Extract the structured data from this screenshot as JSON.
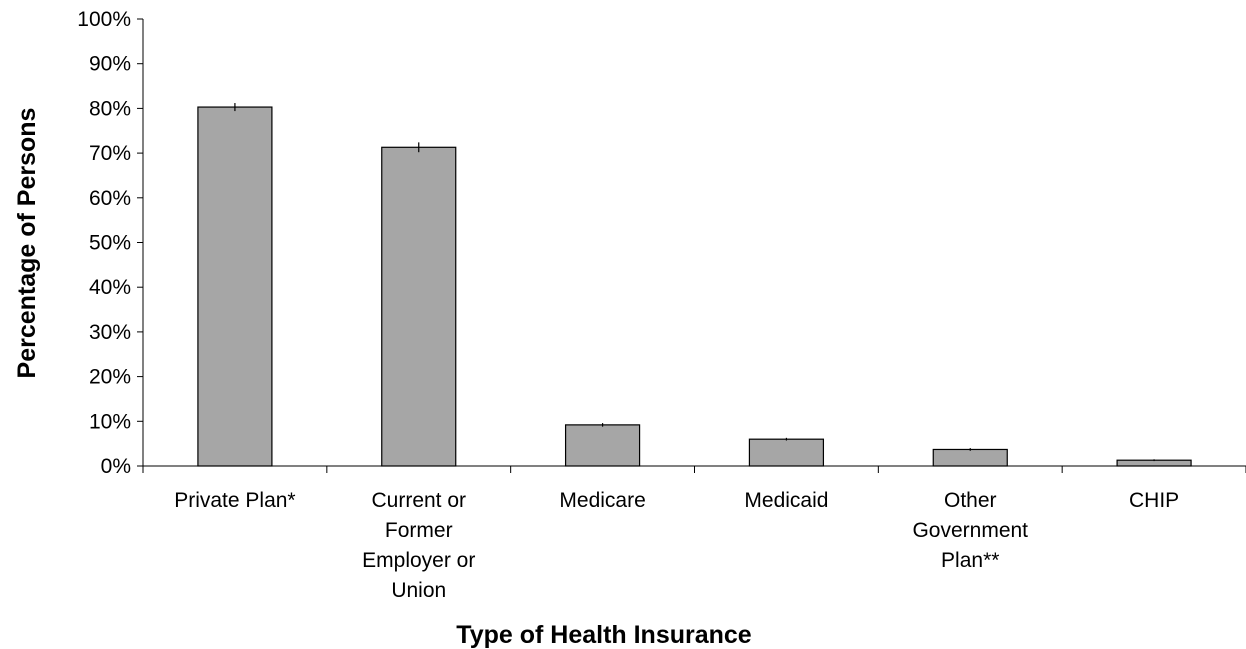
{
  "chart_data": {
    "type": "bar",
    "title": "",
    "xlabel": "Type of Health Insurance",
    "ylabel": "Percentage of Persons",
    "ylim": [
      0,
      100
    ],
    "yticks": [
      "0%",
      "10%",
      "20%",
      "30%",
      "40%",
      "50%",
      "60%",
      "70%",
      "80%",
      "90%",
      "100%"
    ],
    "categories": [
      [
        "Private Plan*"
      ],
      [
        "Current or",
        "Former",
        "Employer or",
        "Union"
      ],
      [
        "Medicare"
      ],
      [
        "Medicaid"
      ],
      [
        "Other",
        "Government",
        "Plan**"
      ],
      [
        "CHIP"
      ]
    ],
    "values": [
      80.3,
      71.3,
      9.2,
      6.0,
      3.7,
      1.3
    ],
    "error": [
      0.9,
      1.1,
      0.4,
      0.3,
      0.3,
      0.2
    ],
    "grid": false,
    "legend": "none",
    "colors": {
      "bar_fill": "#a6a6a6",
      "bar_stroke": "#000000",
      "axis": "#000000"
    }
  }
}
